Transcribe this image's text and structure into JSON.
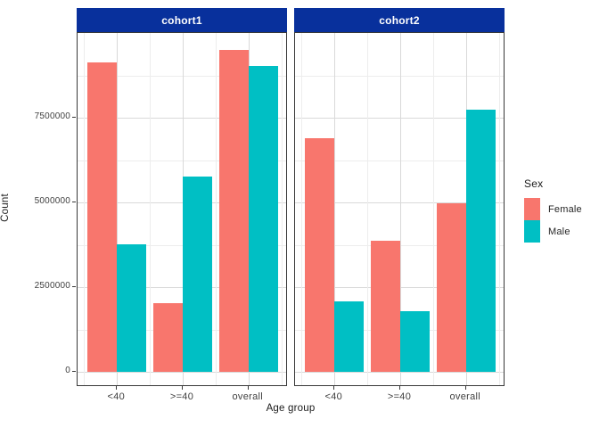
{
  "chart_data": {
    "type": "bar",
    "title": "",
    "xlabel": "Age group",
    "ylabel": "Count",
    "categories": [
      "<40",
      ">=40",
      "overall"
    ],
    "facets": [
      {
        "label": "cohort1"
      },
      {
        "label": "cohort2"
      }
    ],
    "series": [
      {
        "name": "Female",
        "color": "#F8766D",
        "values": [
          [
            9130000,
            2030000,
            9500000
          ],
          [
            6900000,
            3870000,
            4970000
          ]
        ]
      },
      {
        "name": "Male",
        "color": "#00BFC4",
        "values": [
          [
            3760000,
            5760000,
            9030000
          ],
          [
            2080000,
            1790000,
            7740000
          ]
        ]
      }
    ],
    "y_ticks": [
      0,
      2500000,
      5000000,
      7500000
    ],
    "y_tick_labels": [
      "0",
      "2500000",
      "5000000",
      "7500000"
    ],
    "y_minor_ticks": [
      1250000,
      3750000,
      6250000,
      8750000
    ],
    "ylim": [
      -450000,
      10000000
    ],
    "grid": true,
    "legend": {
      "title": "Sex",
      "position": "right"
    },
    "colors": {
      "strip_background": "#08309C",
      "strip_text": "#FFFFFF",
      "grid_major": "#D9D9D9",
      "grid_minor": "#EDEDED",
      "panel_border": "#383838",
      "bar_female": "#F8766D",
      "bar_male": "#00BFC4"
    }
  }
}
